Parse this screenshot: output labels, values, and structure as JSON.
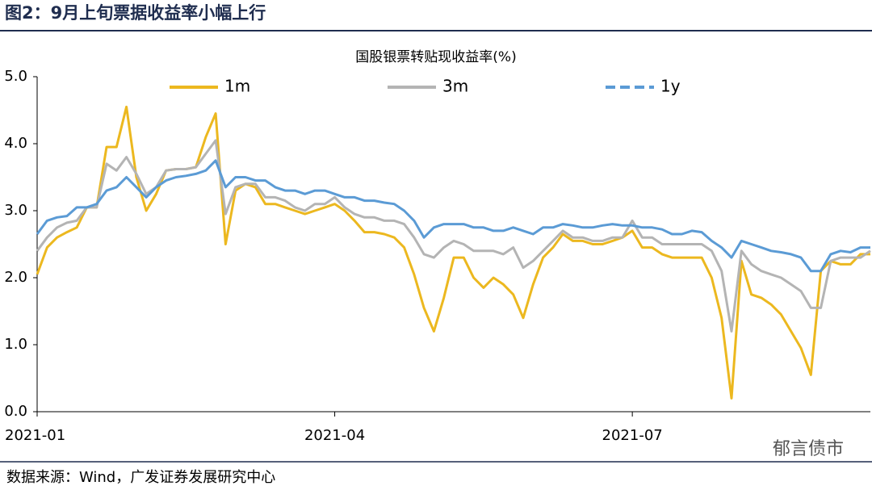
{
  "header": {
    "title": "图2：9月上旬票据收益率小幅上行"
  },
  "footer": {
    "source": "数据来源：Wind，广发证券发展研究中心",
    "watermark": "郁言债市"
  },
  "chart_data": {
    "type": "line",
    "title": "国股银票转贴现收益率(%)",
    "categories": [
      "2021-01",
      null,
      null,
      null,
      null,
      null,
      null,
      null,
      null,
      null,
      null,
      null,
      null,
      null,
      null,
      null,
      null,
      null,
      null,
      null,
      null,
      null,
      null,
      null,
      null,
      null,
      null,
      null,
      null,
      null,
      "2021-04",
      null,
      null,
      null,
      null,
      null,
      null,
      null,
      null,
      null,
      null,
      null,
      null,
      null,
      null,
      null,
      null,
      null,
      null,
      null,
      null,
      null,
      null,
      null,
      null,
      null,
      null,
      null,
      null,
      null,
      "2021-07",
      null,
      null,
      null,
      null,
      null,
      null,
      null,
      null,
      null,
      null,
      null,
      null,
      null,
      null,
      null,
      null,
      null,
      null,
      null,
      null,
      null,
      null,
      null,
      null
    ],
    "series": [
      {
        "name": "1m",
        "color": "#ecb81f",
        "values": [
          2.05,
          2.45,
          2.6,
          2.68,
          2.75,
          3.05,
          3.05,
          3.95,
          3.95,
          4.55,
          3.5,
          3.0,
          3.25,
          3.6,
          3.62,
          3.62,
          3.65,
          4.1,
          4.45,
          2.5,
          3.3,
          3.4,
          3.35,
          3.1,
          3.1,
          3.05,
          3.0,
          2.95,
          3.0,
          3.05,
          3.1,
          3.0,
          2.85,
          2.68,
          2.68,
          2.65,
          2.6,
          2.45,
          2.05,
          1.55,
          1.2,
          1.7,
          2.3,
          2.3,
          2.0,
          1.85,
          2.0,
          1.9,
          1.75,
          1.4,
          1.9,
          2.3,
          2.45,
          2.65,
          2.55,
          2.55,
          2.5,
          2.5,
          2.55,
          2.6,
          2.7,
          2.45,
          2.45,
          2.35,
          2.3,
          2.3,
          2.3,
          2.3,
          2.0,
          1.4,
          0.2,
          2.25,
          1.75,
          1.7,
          1.6,
          1.45,
          1.2,
          0.95,
          0.55,
          2.1,
          2.25,
          2.2,
          2.2,
          2.35,
          2.35
        ]
      },
      {
        "name": "3m",
        "color": "#b4b4b4",
        "values": [
          2.4,
          2.6,
          2.75,
          2.82,
          2.85,
          3.05,
          3.05,
          3.7,
          3.6,
          3.8,
          3.55,
          3.25,
          3.35,
          3.6,
          3.62,
          3.62,
          3.65,
          3.85,
          4.05,
          2.95,
          3.35,
          3.4,
          3.4,
          3.2,
          3.2,
          3.15,
          3.05,
          3.0,
          3.1,
          3.1,
          3.2,
          3.05,
          2.95,
          2.9,
          2.9,
          2.85,
          2.85,
          2.8,
          2.6,
          2.35,
          2.3,
          2.45,
          2.55,
          2.5,
          2.4,
          2.4,
          2.4,
          2.35,
          2.45,
          2.15,
          2.25,
          2.4,
          2.55,
          2.7,
          2.6,
          2.6,
          2.55,
          2.55,
          2.6,
          2.6,
          2.85,
          2.6,
          2.6,
          2.5,
          2.5,
          2.5,
          2.5,
          2.5,
          2.4,
          2.1,
          1.2,
          2.4,
          2.2,
          2.1,
          2.05,
          2.0,
          1.9,
          1.8,
          1.55,
          1.55,
          2.25,
          2.3,
          2.3,
          2.3,
          2.4
        ]
      },
      {
        "name": "1y",
        "color": "#5b9bd5",
        "values": [
          2.65,
          2.85,
          2.9,
          2.92,
          3.05,
          3.05,
          3.1,
          3.3,
          3.35,
          3.5,
          3.35,
          3.2,
          3.35,
          3.45,
          3.5,
          3.52,
          3.55,
          3.6,
          3.75,
          3.35,
          3.5,
          3.5,
          3.45,
          3.45,
          3.35,
          3.3,
          3.3,
          3.25,
          3.3,
          3.3,
          3.25,
          3.2,
          3.2,
          3.15,
          3.15,
          3.12,
          3.1,
          3.0,
          2.85,
          2.6,
          2.75,
          2.8,
          2.8,
          2.8,
          2.75,
          2.75,
          2.7,
          2.7,
          2.75,
          2.7,
          2.65,
          2.75,
          2.75,
          2.8,
          2.78,
          2.75,
          2.75,
          2.78,
          2.8,
          2.78,
          2.78,
          2.75,
          2.75,
          2.72,
          2.65,
          2.65,
          2.7,
          2.68,
          2.55,
          2.45,
          2.3,
          2.55,
          2.5,
          2.45,
          2.4,
          2.38,
          2.35,
          2.3,
          2.1,
          2.1,
          2.35,
          2.4,
          2.38,
          2.45,
          2.45
        ]
      }
    ],
    "ylim": [
      0,
      5
    ],
    "yticks": [
      {
        "value": 0,
        "label": "0.0"
      },
      {
        "value": 1,
        "label": "1.0"
      },
      {
        "value": 2,
        "label": "2.0"
      },
      {
        "value": 3,
        "label": "3.0"
      },
      {
        "value": 4,
        "label": "4.0"
      },
      {
        "value": 5,
        "label": "5.0"
      }
    ],
    "grid": false
  }
}
